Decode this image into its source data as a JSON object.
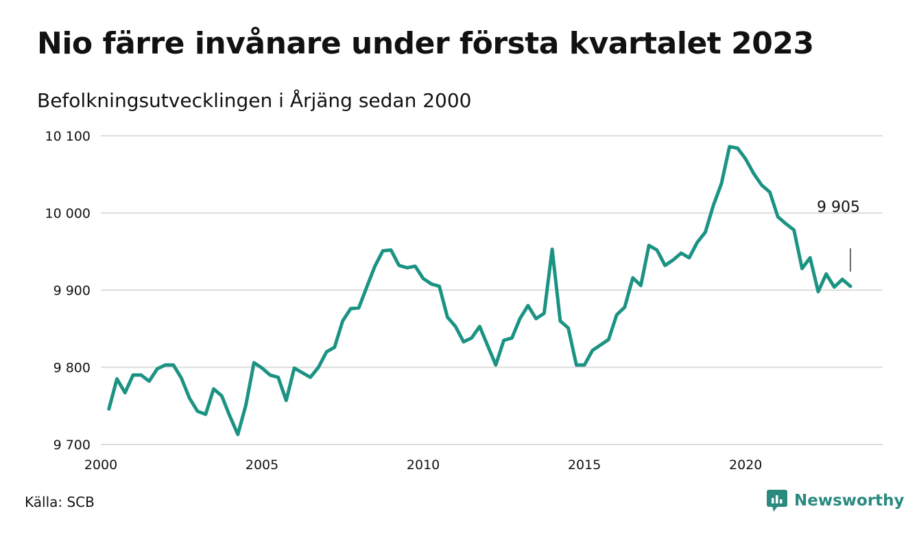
{
  "header": {
    "title": "Nio färre invånare under första kvartalet 2023",
    "subtitle": "Befolkningsutvecklingen i Årjäng sedan 2000"
  },
  "footer": {
    "source": "Källa: SCB",
    "brand": "Newsworthy"
  },
  "colors": {
    "line": "#1b9383",
    "grid": "#dcdcdc",
    "brand": "#2a8a7e"
  },
  "chart_data": {
    "type": "line",
    "title": "Nio färre invånare under första kvartalet 2023",
    "subtitle": "Befolkningsutvecklingen i Årjäng sedan 2000",
    "xlabel": "",
    "ylabel": "",
    "xlim": [
      2000,
      2024.25
    ],
    "ylim": [
      9700,
      10100
    ],
    "x_ticks": [
      2000,
      2005,
      2010,
      2015,
      2020
    ],
    "y_ticks": [
      9700,
      9800,
      9900,
      10000,
      10100
    ],
    "y_tick_labels": [
      "9 700",
      "9 800",
      "9 900",
      "10 000",
      "10 100"
    ],
    "grid": true,
    "last_value_label": "9 905",
    "series": [
      {
        "x": [
          2000.25,
          2000.5,
          2000.75,
          2001,
          2001.25,
          2001.5,
          2001.75,
          2002,
          2002.25,
          2002.5,
          2002.75,
          2003,
          2003.25,
          2003.5,
          2003.75,
          2004,
          2004.25,
          2004.5,
          2004.75,
          2005,
          2005.25,
          2005.5,
          2005.75,
          2006,
          2006.25,
          2006.5,
          2006.75,
          2007,
          2007.25,
          2007.5,
          2007.75,
          2008,
          2008.25,
          2008.5,
          2008.75,
          2009,
          2009.25,
          2009.5,
          2009.75,
          2010,
          2010.25,
          2010.5,
          2010.75,
          2011,
          2011.25,
          2011.5,
          2011.75,
          2012,
          2012.25,
          2012.5,
          2012.75,
          2013,
          2013.25,
          2013.5,
          2013.75,
          2014,
          2014.25,
          2014.5,
          2014.75,
          2015,
          2015.25,
          2015.5,
          2015.75,
          2016,
          2016.25,
          2016.5,
          2016.75,
          2017,
          2017.25,
          2017.5,
          2017.75,
          2018,
          2018.25,
          2018.5,
          2018.75,
          2019,
          2019.25,
          2019.5,
          2019.75,
          2020,
          2020.25,
          2020.5,
          2020.75,
          2021,
          2021.25,
          2021.5,
          2021.75,
          2022,
          2022.25,
          2022.5,
          2022.75,
          2023,
          2023.25
        ],
        "values": [
          9746,
          9785,
          9767,
          9790,
          9790,
          9782,
          9798,
          9803,
          9803,
          9786,
          9760,
          9743,
          9739,
          9772,
          9763,
          9737,
          9713,
          9751,
          9806,
          9799,
          9790,
          9787,
          9757,
          9799,
          9793,
          9787,
          9800,
          9820,
          9826,
          9860,
          9876,
          9877,
          9904,
          9931,
          9951,
          9952,
          9932,
          9929,
          9931,
          9915,
          9908,
          9905,
          9865,
          9853,
          9833,
          9838,
          9853,
          9828,
          9803,
          9835,
          9838,
          9863,
          9880,
          9863,
          9870,
          9953,
          9860,
          9851,
          9803,
          9803,
          9822,
          9829,
          9836,
          9868,
          9878,
          9916,
          9906,
          9958,
          9952,
          9932,
          9939,
          9948,
          9942,
          9962,
          9975,
          10010,
          10038,
          10086,
          10084,
          10070,
          10051,
          10036,
          10027,
          9995,
          9986,
          9978,
          9928,
          9942,
          9898,
          9921,
          9904,
          9914,
          9905
        ]
      }
    ]
  }
}
